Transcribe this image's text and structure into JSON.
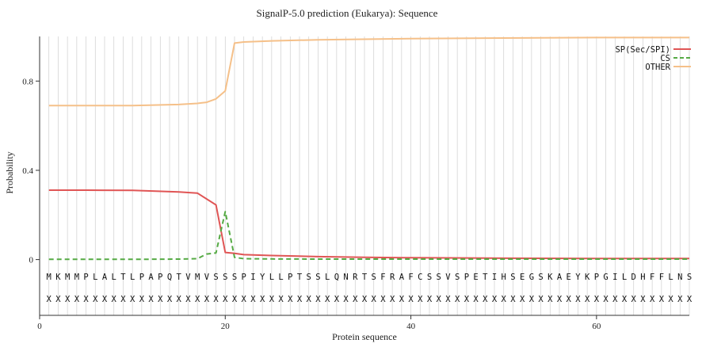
{
  "chart_data": {
    "type": "line",
    "title": "SignalP-5.0 prediction (Eukarya):  Sequence",
    "xlabel": "Protein sequence",
    "ylabel": "Probability",
    "xlim": [
      0,
      70
    ],
    "ylim": [
      -0.25,
      1.0
    ],
    "x_ticks": [
      0,
      20,
      40,
      60
    ],
    "y_ticks": [
      0,
      0.4,
      0.8
    ],
    "x_tick_labels": [
      "0",
      "20",
      "40",
      "60"
    ],
    "y_tick_labels": [
      "0",
      "0.4",
      "0.8"
    ],
    "grid": "vertical",
    "legend": "top-right",
    "sequence": [
      "M",
      "K",
      "M",
      "M",
      "P",
      "L",
      "A",
      "L",
      "T",
      "L",
      "P",
      "A",
      "P",
      "Q",
      "T",
      "V",
      "M",
      "V",
      "S",
      "S",
      "S",
      "P",
      "I",
      "Y",
      "L",
      "L",
      "P",
      "T",
      "S",
      "S",
      "L",
      "Q",
      "N",
      "R",
      "T",
      "S",
      "F",
      "R",
      "A",
      "F",
      "C",
      "S",
      "S",
      "V",
      "S",
      "P",
      "E",
      "T",
      "I",
      "H",
      "S",
      "E",
      "G",
      "S",
      "K",
      "A",
      "E",
      "Y",
      "K",
      "P",
      "G",
      "I",
      "L",
      "D",
      "H",
      "F",
      "F",
      "L",
      "N",
      "S"
    ],
    "annotation": [
      "X",
      "X",
      "X",
      "X",
      "X",
      "X",
      "X",
      "X",
      "X",
      "X",
      "X",
      "X",
      "X",
      "X",
      "X",
      "X",
      "X",
      "X",
      "X",
      "X",
      "X",
      "X",
      "X",
      "X",
      "X",
      "X",
      "X",
      "X",
      "X",
      "X",
      "X",
      "X",
      "X",
      "X",
      "X",
      "X",
      "X",
      "X",
      "X",
      "X",
      "X",
      "X",
      "X",
      "X",
      "X",
      "X",
      "X",
      "X",
      "X",
      "X",
      "X",
      "X",
      "X",
      "X",
      "X",
      "X",
      "X",
      "X",
      "X",
      "X",
      "X",
      "X",
      "X",
      "X",
      "X",
      "X",
      "X",
      "X",
      "X",
      "X"
    ],
    "series": [
      {
        "name": "SP(Sec/SPI)",
        "color": "#e05555",
        "style": "solid",
        "x": [
          1,
          5,
          10,
          15,
          17,
          19,
          20,
          21,
          22,
          25,
          30,
          35,
          40,
          50,
          60,
          70
        ],
        "values": [
          0.311,
          0.311,
          0.31,
          0.303,
          0.298,
          0.245,
          0.032,
          0.028,
          0.022,
          0.018,
          0.013,
          0.01,
          0.008,
          0.006,
          0.005,
          0.005
        ]
      },
      {
        "name": "CS",
        "color": "#55aa44",
        "style": "dashed",
        "x": [
          1,
          5,
          10,
          15,
          17,
          18,
          19,
          20,
          21,
          22,
          25,
          30,
          40,
          50,
          60,
          70
        ],
        "values": [
          0.001,
          0.001,
          0.001,
          0.002,
          0.004,
          0.025,
          0.03,
          0.215,
          0.01,
          0.004,
          0.003,
          0.002,
          0.002,
          0.002,
          0.002,
          0.002
        ]
      },
      {
        "name": "OTHER",
        "color": "#f5c089",
        "style": "solid",
        "x": [
          1,
          5,
          10,
          15,
          17,
          18,
          19,
          20,
          21,
          22,
          25,
          30,
          40,
          50,
          60,
          70
        ],
        "values": [
          0.69,
          0.69,
          0.69,
          0.695,
          0.7,
          0.705,
          0.72,
          0.756,
          0.97,
          0.975,
          0.98,
          0.985,
          0.99,
          0.993,
          0.995,
          0.995
        ]
      }
    ]
  }
}
